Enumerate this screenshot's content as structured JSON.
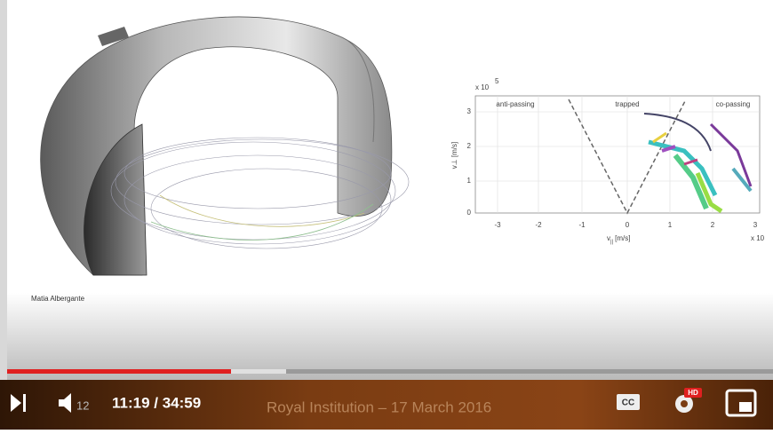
{
  "video_frame": {
    "credit": "Matia Albergante",
    "plot": {
      "y_exponent_label": "x 10",
      "y_exponent": "5",
      "regions": [
        "anti-passing",
        "trapped",
        "co-passing"
      ],
      "x_ticks": [
        "-3",
        "-2",
        "-1",
        "0",
        "1",
        "2",
        "3"
      ],
      "y_ticks": [
        "0",
        "1",
        "2",
        "3"
      ],
      "x_label": "v",
      "x_label_sub": "||",
      "x_label_unit": "[m/s]",
      "y_label": "v⊥ [m/s]",
      "x_exponent_label": "x 10"
    }
  },
  "controls": {
    "volume_level": "12",
    "time": "11:19 / 34:59",
    "video_title": "Royal Institution – 17 March 2016",
    "cc": "CC",
    "hd": "HD"
  }
}
